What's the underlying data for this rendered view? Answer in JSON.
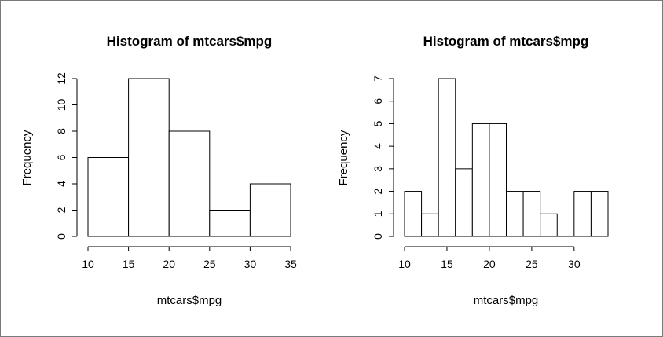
{
  "chart_data": [
    {
      "type": "bar",
      "title": "Histogram of mtcars$mpg",
      "xlabel": "mtcars$mpg",
      "ylabel": "Frequency",
      "bins": [
        [
          10,
          15
        ],
        [
          15,
          20
        ],
        [
          20,
          25
        ],
        [
          25,
          30
        ],
        [
          30,
          35
        ]
      ],
      "values": [
        6,
        12,
        8,
        2,
        4
      ],
      "xlim": [
        10,
        35
      ],
      "ylim": [
        0,
        12
      ],
      "xticks": [
        10,
        15,
        20,
        25,
        30,
        35
      ],
      "yticks": [
        0,
        2,
        4,
        6,
        8,
        10,
        12
      ],
      "grid": false
    },
    {
      "type": "bar",
      "title": "Histogram of mtcars$mpg",
      "xlabel": "mtcars$mpg",
      "ylabel": "Frequency",
      "bins": [
        [
          10,
          12
        ],
        [
          12,
          14
        ],
        [
          14,
          16
        ],
        [
          16,
          18
        ],
        [
          18,
          20
        ],
        [
          20,
          22
        ],
        [
          22,
          24
        ],
        [
          24,
          26
        ],
        [
          26,
          28
        ],
        [
          28,
          30
        ],
        [
          30,
          32
        ],
        [
          32,
          34
        ]
      ],
      "values": [
        2,
        1,
        7,
        3,
        5,
        5,
        2,
        2,
        1,
        0,
        2,
        2
      ],
      "xlim": [
        10,
        34
      ],
      "ylim": [
        0,
        7
      ],
      "xticks": [
        10,
        15,
        20,
        25,
        30
      ],
      "yticks": [
        0,
        1,
        2,
        3,
        4,
        5,
        6,
        7
      ],
      "grid": false
    }
  ]
}
